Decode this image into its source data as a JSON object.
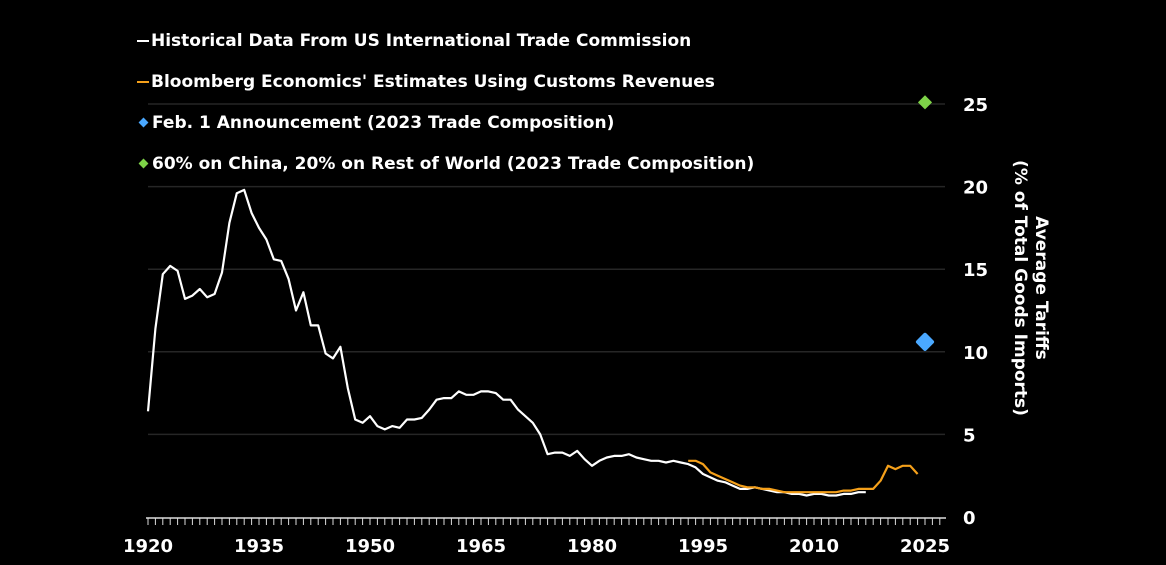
{
  "chart_data": {
    "type": "line",
    "ylabel_line1": "Average Tariffs",
    "ylabel_line2": "(% of Total Goods Imports)",
    "xlim": [
      1920,
      2025
    ],
    "ylim": [
      0,
      25
    ],
    "x_ticks": [
      "1920",
      "1935",
      "1950",
      "1965",
      "1980",
      "1995",
      "2010",
      "2025"
    ],
    "y_ticks": [
      "0",
      "5",
      "10",
      "15",
      "20",
      "25"
    ],
    "y_axis_position": "right",
    "grid": "horizontal",
    "legend": "top-left",
    "series": [
      {
        "name": "Historical Data From US International Trade Commission",
        "color": "#ffffff",
        "start": 1920,
        "values": [
          6.4,
          11.4,
          14.7,
          15.2,
          14.9,
          13.2,
          13.4,
          13.8,
          13.3,
          13.5,
          14.8,
          17.8,
          19.6,
          19.8,
          18.4,
          17.5,
          16.8,
          15.6,
          15.5,
          14.4,
          12.5,
          13.6,
          11.6,
          11.6,
          9.9,
          9.6,
          10.3,
          7.8,
          5.9,
          5.7,
          6.1,
          5.5,
          5.3,
          5.5,
          5.4,
          5.9,
          5.9,
          6.0,
          6.5,
          7.1,
          7.2,
          7.2,
          7.6,
          7.4,
          7.4,
          7.6,
          7.6,
          7.5,
          7.1,
          7.1,
          6.5,
          6.1,
          5.7,
          5.0,
          3.8,
          3.9,
          3.9,
          3.7,
          4.0,
          3.5,
          3.1,
          3.4,
          3.6,
          3.7,
          3.7,
          3.8,
          3.6,
          3.5,
          3.4,
          3.4,
          3.3,
          3.4,
          3.3,
          3.2,
          3.0,
          2.6,
          2.4,
          2.2,
          2.1,
          1.9,
          1.7,
          1.7,
          1.8,
          1.7,
          1.6,
          1.5,
          1.5,
          1.4,
          1.4,
          1.3,
          1.4,
          1.4,
          1.3,
          1.3,
          1.4,
          1.4,
          1.5,
          1.5
        ]
      },
      {
        "name": "Bloomberg Economics' Estimates Using Customs Revenues",
        "color": "#f5a01a",
        "start": 1993,
        "values": [
          3.4,
          3.4,
          3.2,
          2.7,
          2.5,
          2.3,
          2.1,
          1.9,
          1.8,
          1.8,
          1.7,
          1.7,
          1.6,
          1.5,
          1.5,
          1.5,
          1.5,
          1.5,
          1.5,
          1.5,
          1.5,
          1.6,
          1.6,
          1.7,
          1.7,
          1.7,
          2.2,
          3.1,
          2.9,
          3.1,
          3.1,
          2.6
        ]
      },
      {
        "name": "Feb. 1 Announcement (2023 Trade Composition)",
        "color": "#4aa8ff",
        "marker": "diamond",
        "x": 2025,
        "y": 10.6
      },
      {
        "name": "60% on China, 20% on Rest of World (2023 Trade Composition)",
        "color": "#7ed348",
        "marker": "diamond",
        "x": 2025,
        "y": 25.1
      }
    ]
  }
}
